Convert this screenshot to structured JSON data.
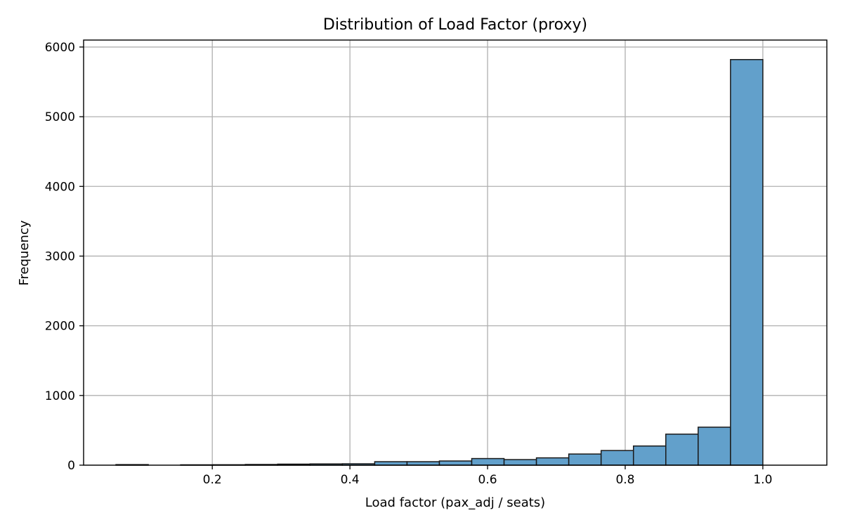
{
  "chart_data": {
    "type": "bar",
    "title": "Distribution of Load Factor (proxy)",
    "xlabel": "Load factor (pax_adj / seats)",
    "ylabel": "Frequency",
    "xlim": [
      0.013,
      1.093
    ],
    "ylim": [
      0,
      6100
    ],
    "xticks": [
      0.2,
      0.4,
      0.6,
      0.8,
      1.0
    ],
    "xtick_labels": [
      "0.2",
      "0.4",
      "0.6",
      "0.8",
      "1.0"
    ],
    "yticks": [
      0,
      1000,
      2000,
      3000,
      4000,
      5000,
      6000
    ],
    "ytick_labels": [
      "0",
      "1000",
      "2000",
      "3000",
      "4000",
      "5000",
      "6000"
    ],
    "grid": true,
    "bar_color": "#62a0cb",
    "edge_color": "#1a1a1a",
    "bins": [
      {
        "start": 0.06,
        "end": 0.107,
        "count": 8
      },
      {
        "start": 0.107,
        "end": 0.154,
        "count": 0
      },
      {
        "start": 0.154,
        "end": 0.201,
        "count": 5
      },
      {
        "start": 0.201,
        "end": 0.248,
        "count": 6
      },
      {
        "start": 0.248,
        "end": 0.295,
        "count": 10
      },
      {
        "start": 0.295,
        "end": 0.342,
        "count": 15
      },
      {
        "start": 0.342,
        "end": 0.389,
        "count": 18
      },
      {
        "start": 0.389,
        "end": 0.436,
        "count": 20
      },
      {
        "start": 0.436,
        "end": 0.483,
        "count": 50
      },
      {
        "start": 0.483,
        "end": 0.53,
        "count": 50
      },
      {
        "start": 0.53,
        "end": 0.577,
        "count": 60
      },
      {
        "start": 0.577,
        "end": 0.624,
        "count": 95
      },
      {
        "start": 0.624,
        "end": 0.671,
        "count": 80
      },
      {
        "start": 0.671,
        "end": 0.718,
        "count": 105
      },
      {
        "start": 0.718,
        "end": 0.765,
        "count": 160
      },
      {
        "start": 0.765,
        "end": 0.812,
        "count": 210
      },
      {
        "start": 0.812,
        "end": 0.859,
        "count": 275
      },
      {
        "start": 0.859,
        "end": 0.906,
        "count": 445
      },
      {
        "start": 0.906,
        "end": 0.953,
        "count": 545
      },
      {
        "start": 0.953,
        "end": 1.0,
        "count": 5820
      }
    ]
  }
}
